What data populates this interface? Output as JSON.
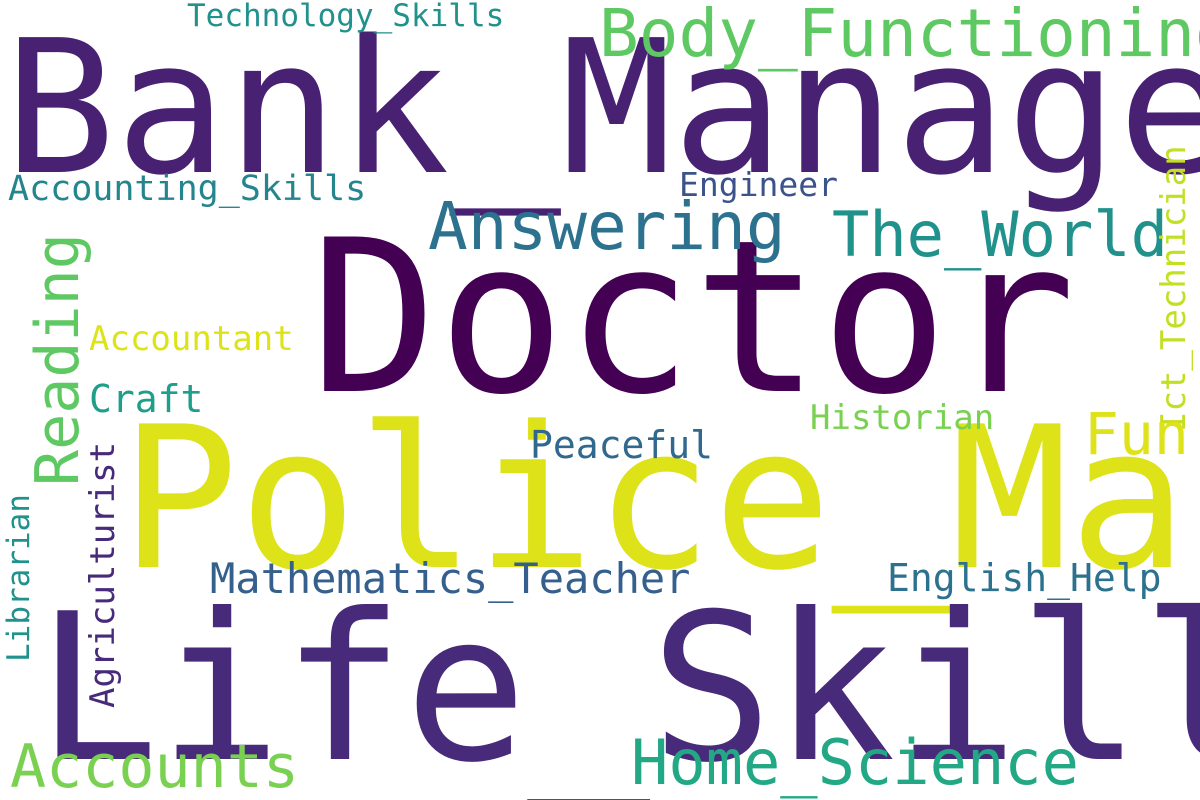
{
  "words": [
    {
      "text": "Doctor",
      "color": "#440154"
    },
    {
      "text": "Bank_Manager",
      "color": "#482173"
    },
    {
      "text": "Police_Man",
      "color": "#dde318"
    },
    {
      "text": "Life_Skills",
      "color": "#472a7a"
    },
    {
      "text": "Body_Functioning",
      "color": "#5ec962"
    },
    {
      "text": "Answering",
      "color": "#2c728e"
    },
    {
      "text": "The_World",
      "color": "#21918c"
    },
    {
      "text": "Reading",
      "color": "#5ec962"
    },
    {
      "text": "Accounting_Skills",
      "color": "#25858e"
    },
    {
      "text": "Technology_Skills",
      "color": "#21918c"
    },
    {
      "text": "Engineer",
      "color": "#3b528b"
    },
    {
      "text": "Accountant",
      "color": "#dde318"
    },
    {
      "text": "Craft",
      "color": "#1f9e89"
    },
    {
      "text": "Historian",
      "color": "#7ad151"
    },
    {
      "text": "Ict_Technician",
      "color": "#c2df23"
    },
    {
      "text": "Fun",
      "color": "#dde318"
    },
    {
      "text": "Peaceful",
      "color": "#31688e"
    },
    {
      "text": "Mathematics_Teacher",
      "color": "#355f8d"
    },
    {
      "text": "English_Help",
      "color": "#2c728e"
    },
    {
      "text": "Librarian",
      "color": "#21918c"
    },
    {
      "text": "Agriculturist",
      "color": "#472a7a"
    },
    {
      "text": "Accounts",
      "color": "#7ad151"
    },
    {
      "text": "Home_Science",
      "color": "#22a884"
    }
  ]
}
